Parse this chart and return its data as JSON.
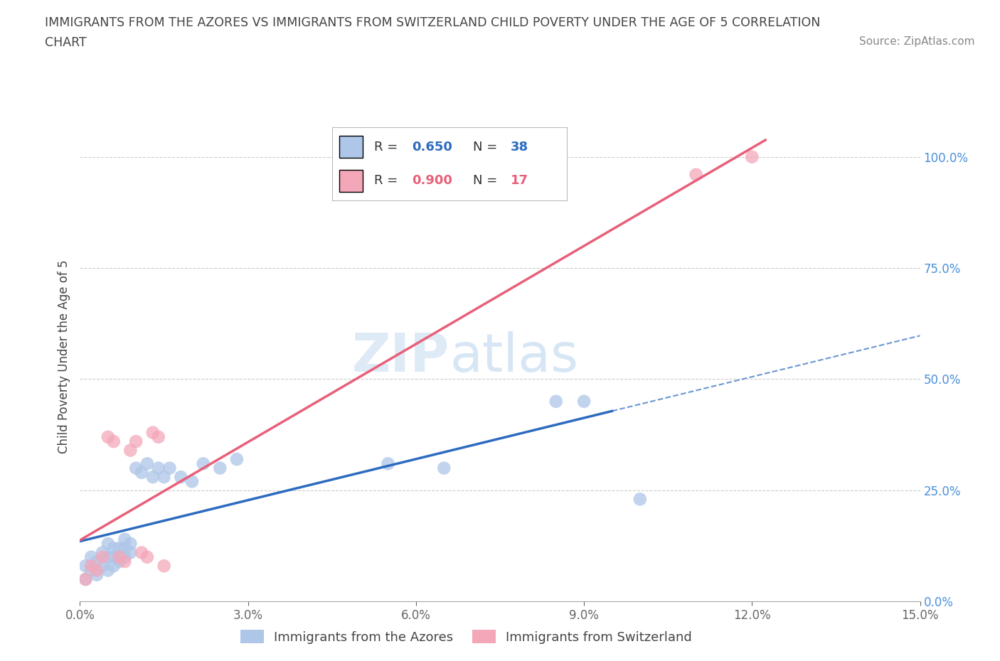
{
  "title_line1": "IMMIGRANTS FROM THE AZORES VS IMMIGRANTS FROM SWITZERLAND CHILD POVERTY UNDER THE AGE OF 5 CORRELATION",
  "title_line2": "CHART",
  "source_text": "Source: ZipAtlas.com",
  "ylabel": "Child Poverty Under the Age of 5",
  "xlim": [
    0.0,
    0.15
  ],
  "ylim": [
    0.0,
    1.1
  ],
  "xticks": [
    0.0,
    0.03,
    0.06,
    0.09,
    0.12,
    0.15
  ],
  "xticklabels": [
    "0.0%",
    "3.0%",
    "6.0%",
    "9.0%",
    "12.0%",
    "15.0%"
  ],
  "yticks": [
    0.0,
    0.25,
    0.5,
    0.75,
    1.0
  ],
  "yticklabels": [
    "0.0%",
    "25.0%",
    "50.0%",
    "75.0%",
    "100.0%"
  ],
  "legend_label1": "Immigrants from the Azores",
  "legend_label2": "Immigrants from Switzerland",
  "R1": 0.65,
  "N1": 38,
  "R2": 0.9,
  "N2": 17,
  "color1": "#aec6e8",
  "color2": "#f4a7b9",
  "line_color1": "#2d6bbf",
  "line_color2": "#e8607a",
  "title_color": "#444444",
  "source_color": "#888888",
  "yaxis_label_color": "#4a90d9",
  "watermark_zip": "ZIP",
  "watermark_atlas": "atlas",
  "azores_x": [
    0.001,
    0.001,
    0.002,
    0.002,
    0.003,
    0.003,
    0.004,
    0.004,
    0.005,
    0.005,
    0.005,
    0.006,
    0.006,
    0.006,
    0.007,
    0.007,
    0.008,
    0.008,
    0.008,
    0.009,
    0.009,
    0.01,
    0.011,
    0.012,
    0.013,
    0.014,
    0.015,
    0.016,
    0.018,
    0.02,
    0.022,
    0.025,
    0.028,
    0.055,
    0.065,
    0.085,
    0.09,
    0.1
  ],
  "azores_y": [
    0.05,
    0.08,
    0.07,
    0.1,
    0.06,
    0.09,
    0.08,
    0.11,
    0.07,
    0.1,
    0.13,
    0.08,
    0.1,
    0.12,
    0.09,
    0.12,
    0.1,
    0.12,
    0.14,
    0.11,
    0.13,
    0.3,
    0.29,
    0.31,
    0.28,
    0.3,
    0.28,
    0.3,
    0.28,
    0.27,
    0.31,
    0.3,
    0.32,
    0.31,
    0.3,
    0.45,
    0.45,
    0.23
  ],
  "swiss_x": [
    0.001,
    0.002,
    0.003,
    0.004,
    0.005,
    0.006,
    0.007,
    0.008,
    0.009,
    0.01,
    0.011,
    0.012,
    0.013,
    0.014,
    0.015,
    0.11,
    0.12
  ],
  "swiss_y": [
    0.05,
    0.08,
    0.07,
    0.1,
    0.37,
    0.36,
    0.1,
    0.09,
    0.34,
    0.36,
    0.11,
    0.1,
    0.38,
    0.37,
    0.08,
    0.96,
    1.0
  ]
}
